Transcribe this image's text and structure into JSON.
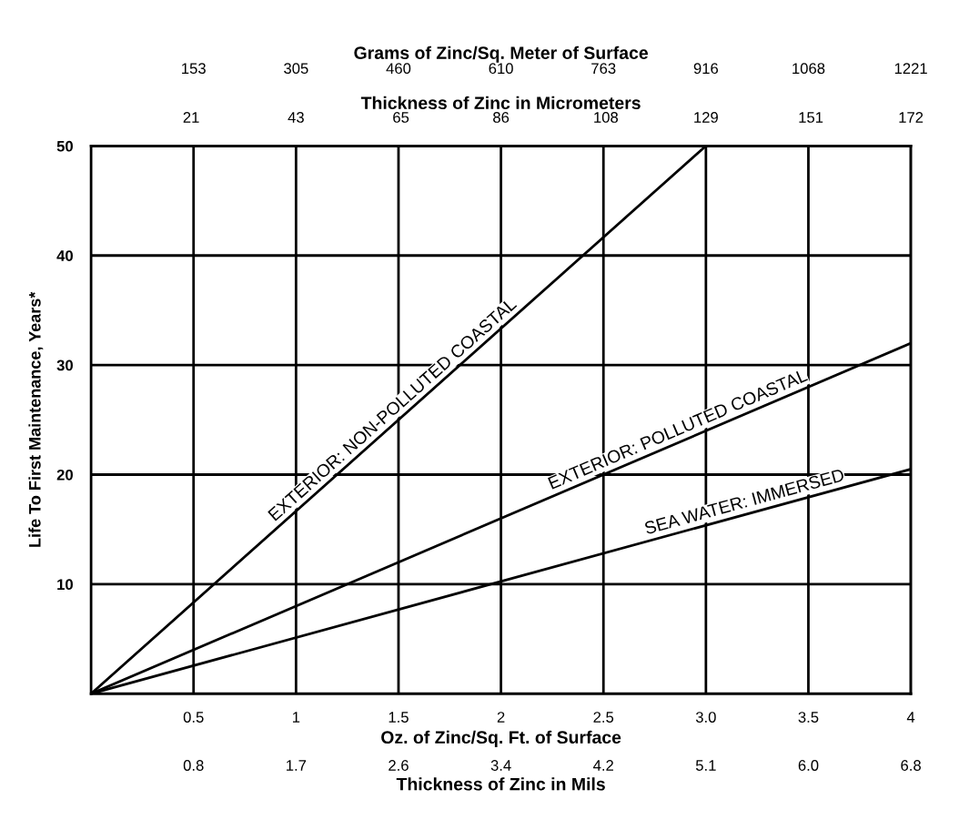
{
  "chart_data": [
    {
      "type": "other",
      "xlabel": "Grams of Zinc/Sq. Meter of Surface",
      "annotations": [
        "153",
        "305",
        "460",
        "610",
        "763",
        "916",
        "1068",
        "1221"
      ]
    },
    {
      "type": "line",
      "xlabel": "Oz. of Zinc/Sq. Ft. of Surface",
      "ylabel": "Life To First Maintenance, Years*",
      "x2label": "Thickness of Zinc in Micrometers",
      "xlim": [
        0,
        4
      ],
      "xticks": [
        0.5,
        1,
        1.5,
        2,
        2.5,
        {
          "value": 3,
          "label": "3.0"
        },
        3.5,
        4
      ],
      "x2lim": [
        0,
        172
      ],
      "x2ticks": [
        21,
        43,
        65,
        86,
        108,
        129,
        151,
        172
      ],
      "ylim": [
        0,
        50
      ],
      "yticks": [
        10,
        20,
        30,
        40,
        50
      ],
      "grid": true,
      "legend": false,
      "marker": "none",
      "line_style": "solid",
      "series": [
        {
          "name": "EXTERIOR: NON-POLLUTED COASTAL",
          "color": "#000000",
          "x": [
            0,
            3
          ],
          "values": [
            0,
            50
          ]
        },
        {
          "name": "EXTERIOR: POLLUTED COASTAL",
          "color": "#000000",
          "x": [
            0,
            4
          ],
          "values": [
            0,
            32
          ]
        },
        {
          "name": "SEA WATER: IMMERSED",
          "color": "#000000",
          "x": [
            0,
            4
          ],
          "values": [
            0,
            20.5
          ]
        }
      ]
    },
    {
      "type": "other",
      "xlabel": "Thickness of Zinc in Mils",
      "annotations": [
        "0.8",
        "1.7",
        "2.6",
        "3.4",
        "4.2",
        "5.1",
        "6.0",
        "6.8"
      ]
    }
  ]
}
